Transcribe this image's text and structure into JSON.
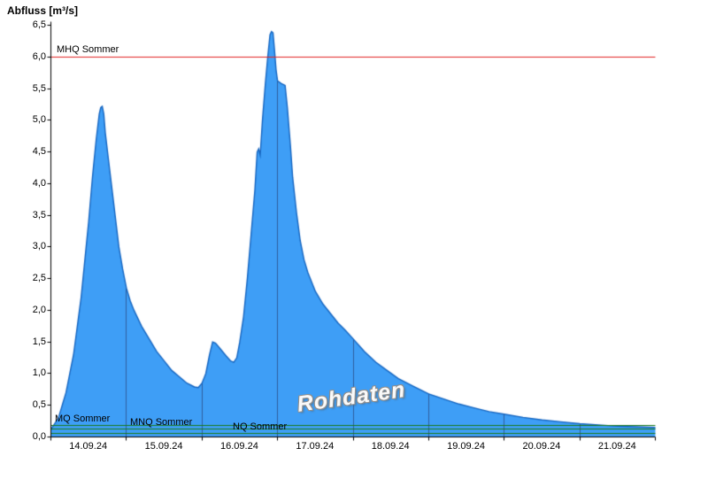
{
  "watermark": "Rohdaten",
  "chart_data": {
    "type": "area",
    "title": "Abfluss [m³/s]",
    "ylabel": "Abfluss [m³/s]",
    "ylim": [
      0.0,
      6.5
    ],
    "ytick_step": 0.5,
    "decimal_separator": ",",
    "grid": {
      "vertical_day_lines": [
        1,
        2,
        3,
        4,
        5,
        6,
        7
      ],
      "color": "#2e5e9e"
    },
    "x_range_days": [
      0,
      8
    ],
    "categories": [
      "14.09.24",
      "15.09.24",
      "16.09.24",
      "17.09.24",
      "18.09.24",
      "19.09.24",
      "20.09.24",
      "21.09.24"
    ],
    "series": [
      {
        "name": "Rohdaten",
        "fill_color": "#3e9ef6",
        "line_color": "#1565c0",
        "x": [
          0,
          0.1,
          0.2,
          0.3,
          0.4,
          0.5,
          0.55,
          0.6,
          0.64,
          0.66,
          0.68,
          0.7,
          0.72,
          0.76,
          0.8,
          0.85,
          0.9,
          0.95,
          1.0,
          1.05,
          1.1,
          1.2,
          1.3,
          1.4,
          1.5,
          1.6,
          1.7,
          1.8,
          1.9,
          1.95,
          2.0,
          2.05,
          2.1,
          2.14,
          2.18,
          2.25,
          2.32,
          2.38,
          2.42,
          2.46,
          2.5,
          2.55,
          2.6,
          2.65,
          2.7,
          2.73,
          2.75,
          2.77,
          2.8,
          2.84,
          2.87,
          2.9,
          2.92,
          2.94,
          2.96,
          2.98,
          3.0,
          3.05,
          3.1,
          3.13,
          3.17,
          3.2,
          3.25,
          3.3,
          3.35,
          3.4,
          3.5,
          3.6,
          3.7,
          3.8,
          3.9,
          4.0,
          4.15,
          4.3,
          4.45,
          4.6,
          4.8,
          5.0,
          5.2,
          5.4,
          5.6,
          5.8,
          6.0,
          6.25,
          6.5,
          6.75,
          7.0,
          7.25,
          7.5,
          7.75,
          8.0
        ],
        "values": [
          0.12,
          0.3,
          0.7,
          1.3,
          2.2,
          3.4,
          4.1,
          4.7,
          5.1,
          5.2,
          5.22,
          5.1,
          4.8,
          4.4,
          4.0,
          3.5,
          3.0,
          2.65,
          2.35,
          2.15,
          2.0,
          1.75,
          1.55,
          1.35,
          1.2,
          1.05,
          0.95,
          0.85,
          0.79,
          0.78,
          0.85,
          1.0,
          1.3,
          1.5,
          1.48,
          1.38,
          1.28,
          1.2,
          1.18,
          1.25,
          1.5,
          1.9,
          2.5,
          3.2,
          3.9,
          4.5,
          4.55,
          4.45,
          5.0,
          5.6,
          6.0,
          6.35,
          6.4,
          6.38,
          6.1,
          5.8,
          5.62,
          5.58,
          5.55,
          5.2,
          4.6,
          4.1,
          3.55,
          3.1,
          2.8,
          2.6,
          2.3,
          2.1,
          1.95,
          1.8,
          1.68,
          1.55,
          1.35,
          1.18,
          1.05,
          0.92,
          0.8,
          0.68,
          0.6,
          0.52,
          0.46,
          0.4,
          0.36,
          0.31,
          0.27,
          0.24,
          0.21,
          0.19,
          0.17,
          0.16,
          0.15
        ]
      }
    ],
    "reference_lines": [
      {
        "label": "MHQ Sommer",
        "value": 6.0,
        "color": "#e02020"
      },
      {
        "label": "MQ Sommer",
        "value": 0.18,
        "color": "#1b7a1b"
      },
      {
        "label": "MNQ Sommer",
        "value": 0.12,
        "color": "#1b7a1b"
      },
      {
        "label": "NQ Sommer",
        "value": 0.06,
        "color": "#1b7a1b"
      }
    ],
    "legend_position": "none"
  }
}
